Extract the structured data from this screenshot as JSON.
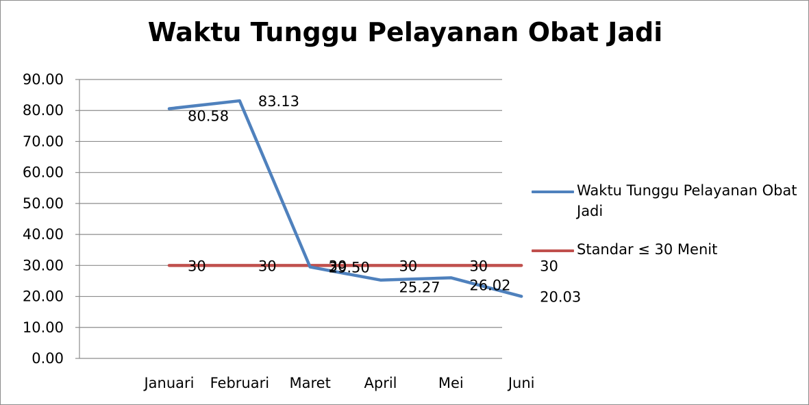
{
  "chart_data": {
    "type": "line",
    "title": "Waktu Tunggu Pelayanan Obat Jadi",
    "categories": [
      "Januari",
      "Februari",
      "Maret",
      "April",
      "Mei",
      "Juni"
    ],
    "ylim": [
      0,
      90
    ],
    "yticks": [
      "0.00",
      "10.00",
      "20.00",
      "30.00",
      "40.00",
      "50.00",
      "60.00",
      "70.00",
      "80.00",
      "90.00"
    ],
    "grid": true,
    "legend_position": "right",
    "series": [
      {
        "name": "Waktu Tunggu Pelayanan Obat Jadi",
        "color": "#4f81bd",
        "values": [
          80.58,
          83.13,
          29.5,
          25.27,
          26.02,
          20.03
        ],
        "labels": [
          "80.58",
          "83.13",
          "29.50",
          "25.27",
          "26.02",
          "20.03"
        ]
      },
      {
        "name": "Standar  ≤ 30 Menit",
        "color": "#c0504d",
        "values": [
          30,
          30,
          30,
          30,
          30,
          30
        ],
        "labels": [
          "30",
          "30",
          "30",
          "30",
          "30",
          "30"
        ]
      }
    ]
  }
}
